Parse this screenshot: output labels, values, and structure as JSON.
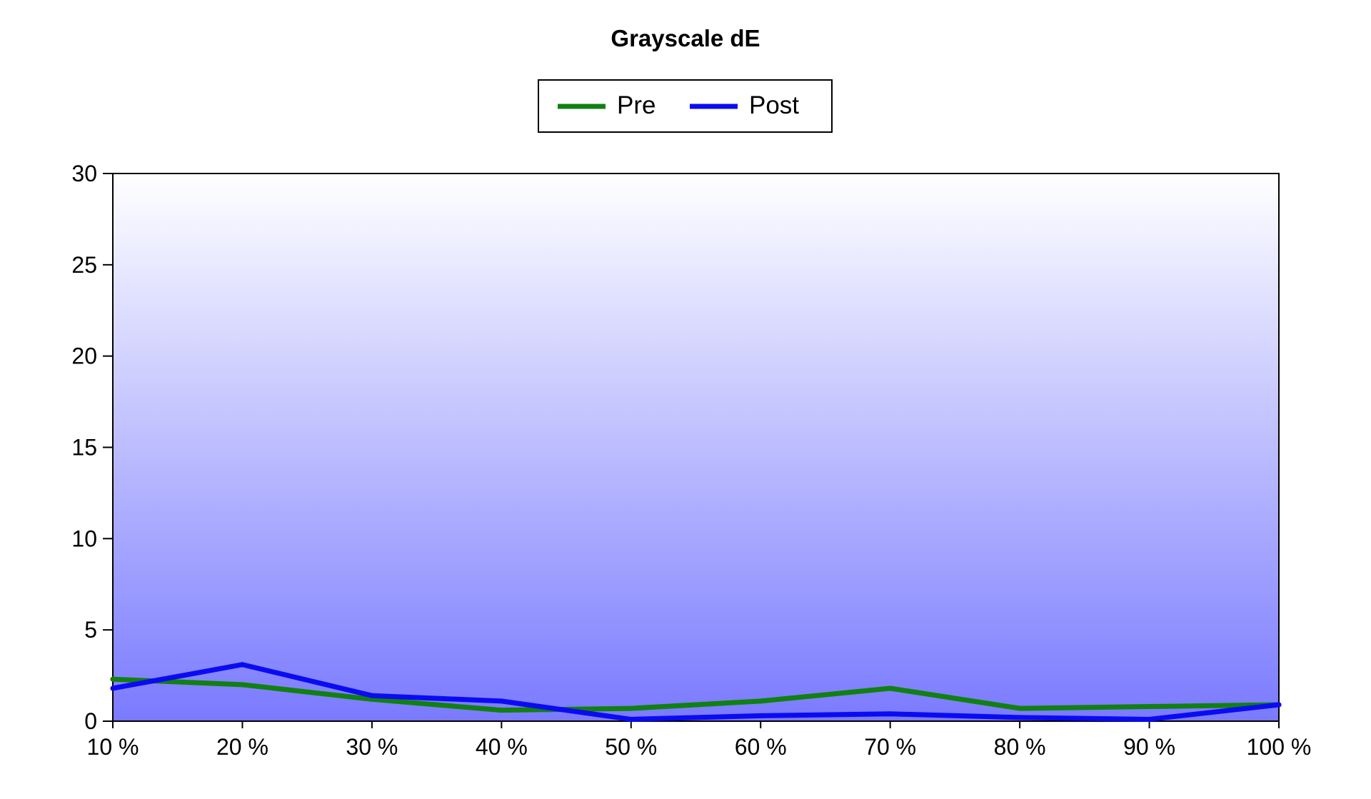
{
  "chart_data": {
    "type": "line",
    "title": "Grayscale dE",
    "xlabel": "",
    "ylabel": "",
    "categories": [
      "10 %",
      "20 %",
      "30 %",
      "40 %",
      "50 %",
      "60 %",
      "70 %",
      "80 %",
      "90 %",
      "100 %"
    ],
    "ylim": [
      0,
      30
    ],
    "yticks": [
      0,
      5,
      10,
      15,
      20,
      25,
      30
    ],
    "grid": false,
    "legend_placement": "top-center",
    "background": "vertical gradient from white (top) to blue (bottom)",
    "series": [
      {
        "name": "Pre",
        "color": "#118011",
        "values": [
          2.3,
          2.0,
          1.2,
          0.6,
          0.7,
          1.1,
          1.8,
          0.7,
          0.8,
          0.9
        ]
      },
      {
        "name": "Post",
        "color": "#0b0bf2",
        "values": [
          1.8,
          3.1,
          1.4,
          1.1,
          0.1,
          0.3,
          0.4,
          0.2,
          0.1,
          0.9
        ]
      }
    ]
  }
}
